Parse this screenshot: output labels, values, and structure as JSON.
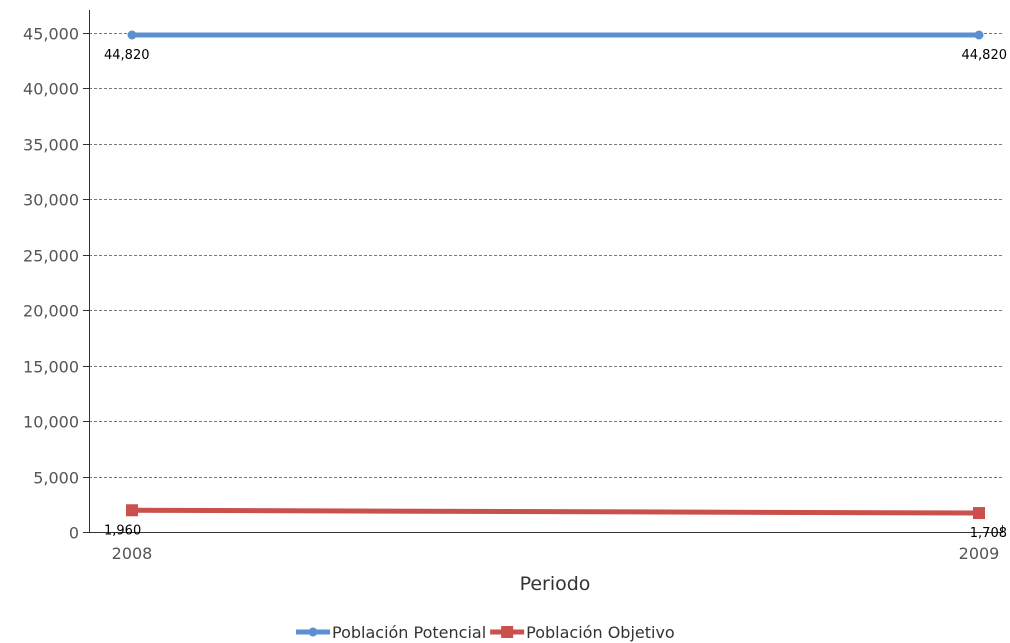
{
  "chart_data": {
    "type": "line",
    "categories": [
      "2008",
      "2009"
    ],
    "xlabel": "Periodo",
    "ylabel": "",
    "ylim": [
      0,
      45000
    ],
    "yticks": [
      0,
      5000,
      10000,
      15000,
      20000,
      25000,
      30000,
      35000,
      40000,
      45000
    ],
    "ytick_labels": [
      "0",
      "5,000",
      "10,000",
      "15,000",
      "20,000",
      "25,000",
      "30,000",
      "35,000",
      "40,000",
      "45,000"
    ],
    "grid": true,
    "legend_position": "bottom-center",
    "series": [
      {
        "name": "Población Potencial",
        "values": [
          44820,
          44820
        ],
        "labels": [
          "44,820",
          "44,820"
        ],
        "color": "#5b8fcf",
        "marker": "circle"
      },
      {
        "name": "Población Objetivo",
        "values": [
          1960,
          1708
        ],
        "labels": [
          "1,960",
          "1,708"
        ],
        "color": "#c9504d",
        "marker": "square"
      }
    ]
  }
}
